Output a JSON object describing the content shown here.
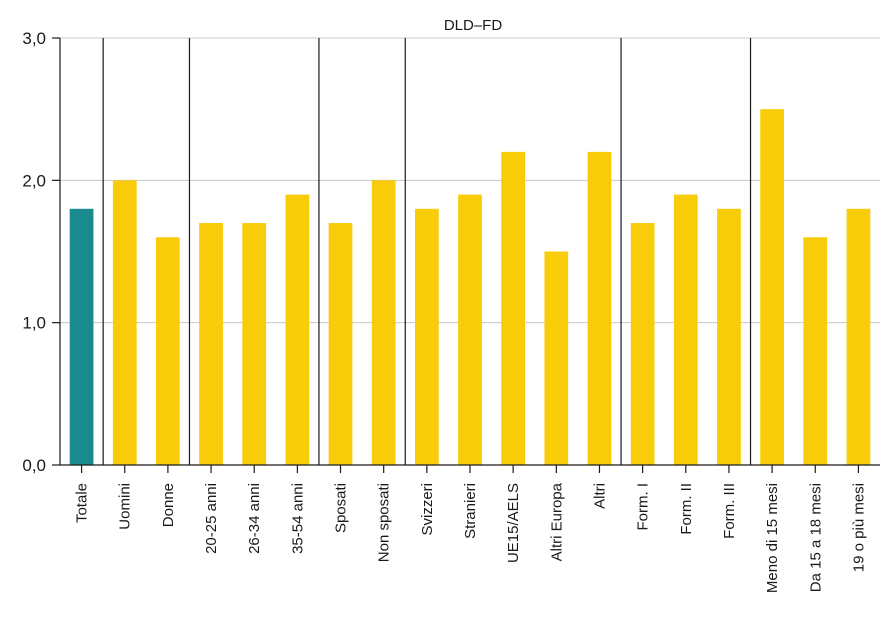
{
  "chart_data": {
    "type": "bar",
    "title": "DLD–FD",
    "xlabel": "",
    "ylabel": "",
    "ylim": [
      0,
      3
    ],
    "yticks": [
      "0,0",
      "1,0",
      "2,0",
      "3,0"
    ],
    "grid": true,
    "categories": [
      "Totale",
      "Uomini",
      "Donne",
      "20-25 anni",
      "26-34 anni",
      "35-54 anni",
      "Sposati",
      "Non sposati",
      "Svizzeri",
      "Stranieri",
      "UE15/AELS",
      "Altri Europa",
      "Altri",
      "Form. I",
      "Form. II",
      "Form. III",
      "Meno di 15 mesi",
      "Da 15 a 18 mesi",
      "19 o più mesi"
    ],
    "values": [
      1.8,
      2.0,
      1.6,
      1.7,
      1.7,
      1.9,
      1.7,
      2.0,
      1.8,
      1.9,
      2.2,
      1.5,
      2.2,
      1.7,
      1.9,
      1.8,
      2.5,
      1.6,
      1.8
    ],
    "group_boundaries_after_index": [
      0,
      2,
      5,
      7,
      12,
      15
    ],
    "colors": {
      "highlight": "#1b8a8f",
      "bar": "#f9cc0a",
      "grid": "#c8c8c8",
      "axis": "#1a1a1a"
    },
    "highlight_index": 0
  }
}
